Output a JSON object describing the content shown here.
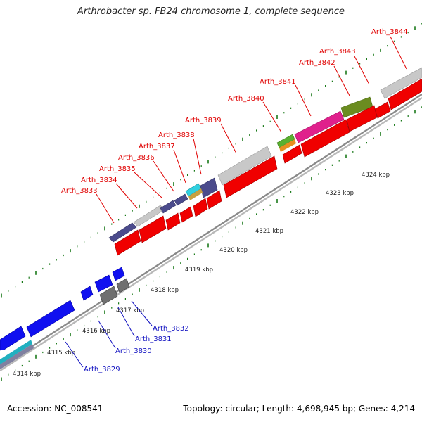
{
  "title": "Arthrobacter sp. FB24 chromosome 1, complete sequence",
  "footer": {
    "accession": "Accession: NC_008541",
    "info": "Topology: circular; Length: 4,698,945 bp; Genes: 4,214"
  },
  "colors": {
    "forward_label": "#e00000",
    "reverse_label": "#1010c0",
    "backbone": "#a0a0a0",
    "tick": "#1a7a1a"
  },
  "kbp_ticks": [
    "4314 kbp",
    "4315 kbp",
    "4316 kbp",
    "4317 kbp",
    "4318 kbp",
    "4319 kbp",
    "4320 kbp",
    "4321 kbp",
    "4322 kbp",
    "4323 kbp",
    "4324 kbp"
  ],
  "forward_gene_labels": [
    "Arth_3833",
    "Arth_3834",
    "Arth_3835",
    "Arth_3836",
    "Arth_3837",
    "Arth_3838",
    "Arth_3839",
    "Arth_3840",
    "Arth_3841",
    "Arth_3842",
    "Arth_3843",
    "Arth_3844"
  ],
  "reverse_gene_labels": [
    "Arth_3829",
    "Arth_3830",
    "Arth_3831",
    "Arth_3832"
  ]
}
